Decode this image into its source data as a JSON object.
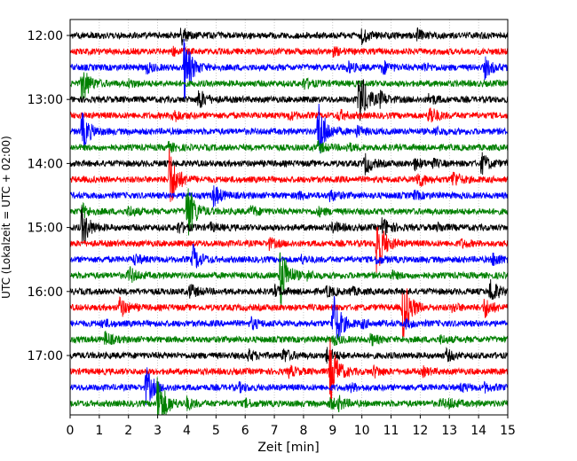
{
  "chart_data": {
    "type": "line",
    "title": "",
    "xlabel": "Zeit  [min]",
    "ylabel": "UTC (Lokalzeit = UTC + 02:00)",
    "xlim": [
      0,
      15
    ],
    "x_ticks": [
      "0",
      "1",
      "2",
      "3",
      "4",
      "5",
      "6",
      "7",
      "8",
      "9",
      "10",
      "11",
      "12",
      "13",
      "14",
      "15"
    ],
    "y_ticks": [
      "12:00",
      "13:00",
      "14:00",
      "15:00",
      "16:00",
      "17:00"
    ],
    "rows_per_hour": 4,
    "trace_colors": [
      "#000000",
      "#ff0000",
      "#0000ff",
      "#008000"
    ],
    "grid": true,
    "series": [
      {
        "row": 0,
        "time": "12:00",
        "events": [
          [
            3.8,
            0.25
          ],
          [
            10.0,
            0.2
          ],
          [
            11.9,
            0.15
          ]
        ]
      },
      {
        "row": 1,
        "time": "12:15",
        "events": [
          [
            3.5,
            0.1
          ],
          [
            9.0,
            0.1
          ]
        ]
      },
      {
        "row": 2,
        "time": "12:30",
        "events": [
          [
            2.6,
            0.15
          ],
          [
            3.9,
            1.0
          ],
          [
            9.5,
            0.15
          ],
          [
            10.7,
            0.2
          ],
          [
            12.1,
            0.1
          ],
          [
            14.2,
            0.3
          ]
        ]
      },
      {
        "row": 3,
        "time": "12:45",
        "events": [
          [
            0.4,
            0.6
          ],
          [
            2.0,
            0.1
          ],
          [
            8.0,
            0.15
          ]
        ]
      },
      {
        "row": 4,
        "time": "13:00",
        "events": [
          [
            4.4,
            0.3
          ],
          [
            9.9,
            1.0
          ],
          [
            10.6,
            0.2
          ],
          [
            12.3,
            0.15
          ]
        ]
      },
      {
        "row": 5,
        "time": "13:15",
        "events": [
          [
            3.5,
            0.2
          ],
          [
            7.5,
            0.1
          ],
          [
            9.2,
            0.15
          ],
          [
            12.3,
            0.3
          ]
        ]
      },
      {
        "row": 6,
        "time": "13:30",
        "events": [
          [
            0.4,
            0.6
          ],
          [
            8.5,
            1.0
          ],
          [
            9.8,
            0.15
          ],
          [
            12.5,
            0.1
          ]
        ]
      },
      {
        "row": 7,
        "time": "13:45",
        "events": [
          [
            3.3,
            0.15
          ],
          [
            8.5,
            0.15
          ],
          [
            9.5,
            0.1
          ]
        ]
      },
      {
        "row": 8,
        "time": "14:00",
        "events": [
          [
            10.1,
            0.3
          ],
          [
            11.8,
            0.15
          ],
          [
            12.4,
            0.1
          ],
          [
            14.1,
            0.3
          ]
        ]
      },
      {
        "row": 9,
        "time": "14:15",
        "events": [
          [
            3.4,
            1.0
          ],
          [
            11.9,
            0.25
          ],
          [
            13.1,
            0.25
          ]
        ]
      },
      {
        "row": 10,
        "time": "14:30",
        "events": [
          [
            4.9,
            0.35
          ],
          [
            7.8,
            0.1
          ],
          [
            8.9,
            0.15
          ],
          [
            11.8,
            0.1
          ]
        ]
      },
      {
        "row": 11,
        "time": "14:45",
        "events": [
          [
            0.4,
            0.2
          ],
          [
            2.0,
            0.15
          ],
          [
            4.0,
            1.0
          ],
          [
            6.2,
            0.15
          ],
          [
            8.5,
            0.1
          ]
        ]
      },
      {
        "row": 12,
        "time": "15:00",
        "events": [
          [
            0.4,
            0.6
          ],
          [
            3.7,
            0.15
          ],
          [
            4.8,
            0.1
          ],
          [
            9.0,
            0.15
          ],
          [
            10.7,
            0.3
          ],
          [
            12.6,
            0.1
          ]
        ]
      },
      {
        "row": 13,
        "time": "15:15",
        "events": [
          [
            6.8,
            0.15
          ],
          [
            10.5,
            1.0
          ],
          [
            13.4,
            0.1
          ]
        ]
      },
      {
        "row": 14,
        "time": "15:30",
        "events": [
          [
            2.2,
            0.15
          ],
          [
            4.2,
            0.4
          ],
          [
            7.9,
            0.1
          ],
          [
            10.5,
            0.1
          ],
          [
            14.5,
            0.2
          ]
        ]
      },
      {
        "row": 15,
        "time": "15:45",
        "events": [
          [
            2.0,
            0.25
          ],
          [
            7.2,
            1.0
          ],
          [
            8.1,
            0.1
          ],
          [
            11.0,
            0.1
          ]
        ]
      },
      {
        "row": 16,
        "time": "16:00",
        "events": [
          [
            4.1,
            0.2
          ],
          [
            7.0,
            0.15
          ],
          [
            8.8,
            0.15
          ],
          [
            9.6,
            0.1
          ],
          [
            14.4,
            0.4
          ]
        ]
      },
      {
        "row": 17,
        "time": "16:15",
        "events": [
          [
            1.7,
            0.3
          ],
          [
            11.4,
            1.0
          ],
          [
            13.1,
            0.1
          ],
          [
            14.2,
            0.3
          ]
        ]
      },
      {
        "row": 18,
        "time": "16:30",
        "events": [
          [
            1.1,
            0.1
          ],
          [
            6.2,
            0.15
          ],
          [
            9.0,
            1.0
          ],
          [
            10.0,
            0.1
          ],
          [
            11.5,
            0.1
          ]
        ]
      },
      {
        "row": 19,
        "time": "16:45",
        "events": [
          [
            1.2,
            0.2
          ],
          [
            9.0,
            0.15
          ],
          [
            10.3,
            0.15
          ],
          [
            12.7,
            0.1
          ]
        ]
      },
      {
        "row": 20,
        "time": "17:00",
        "events": [
          [
            6.1,
            0.15
          ],
          [
            7.3,
            0.2
          ],
          [
            8.8,
            0.25
          ],
          [
            12.9,
            0.15
          ]
        ]
      },
      {
        "row": 21,
        "time": "17:15",
        "events": [
          [
            7.5,
            0.15
          ],
          [
            8.9,
            1.0
          ],
          [
            10.4,
            0.15
          ],
          [
            12.1,
            0.1
          ]
        ]
      },
      {
        "row": 22,
        "time": "17:30",
        "events": [
          [
            2.6,
            0.6
          ],
          [
            5.8,
            0.1
          ],
          [
            9.6,
            0.1
          ],
          [
            13.4,
            0.1
          ],
          [
            14.2,
            0.1
          ]
        ]
      },
      {
        "row": 23,
        "time": "17:45",
        "events": [
          [
            3.0,
            1.0
          ],
          [
            4.0,
            0.15
          ],
          [
            6.0,
            0.1
          ],
          [
            8.9,
            0.15
          ],
          [
            9.2,
            0.15
          ],
          [
            12.7,
            0.1
          ],
          [
            13.0,
            0.1
          ]
        ]
      }
    ]
  }
}
